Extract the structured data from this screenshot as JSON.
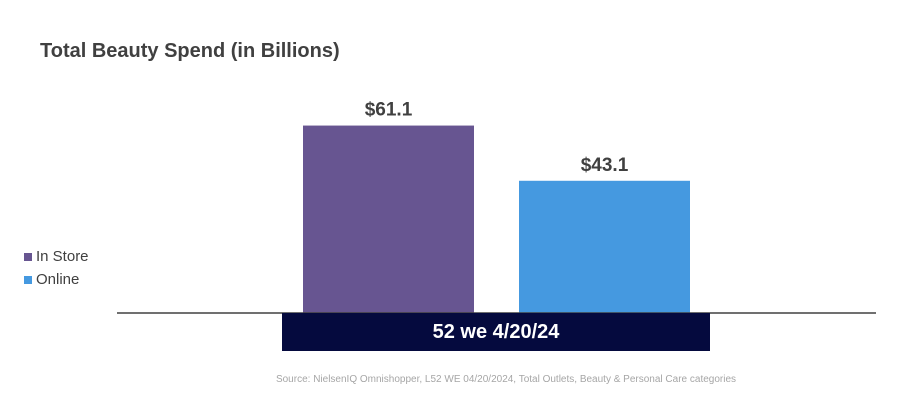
{
  "chart_data": {
    "type": "bar",
    "title": "Total Beauty Spend (in Billions)",
    "categories": [
      "52 we 4/20/24"
    ],
    "series": [
      {
        "name": "In Store",
        "values": [
          61.1
        ],
        "label": "$61.1",
        "color": "#675591"
      },
      {
        "name": "Online",
        "values": [
          43.1
        ],
        "label": "$43.1",
        "color": "#4599e0"
      }
    ],
    "ylim": [
      0,
      66.5
    ],
    "xlabel": "",
    "ylabel": "",
    "grid": false,
    "legend": "left"
  },
  "colors": {
    "category_band": "#050a3e",
    "axis": "#404040",
    "source_text": "#a6a6a6"
  },
  "source": "Source: NielsenIQ Omnishopper, L52 WE 04/20/2024, Total Outlets, Beauty & Personal Care categories"
}
